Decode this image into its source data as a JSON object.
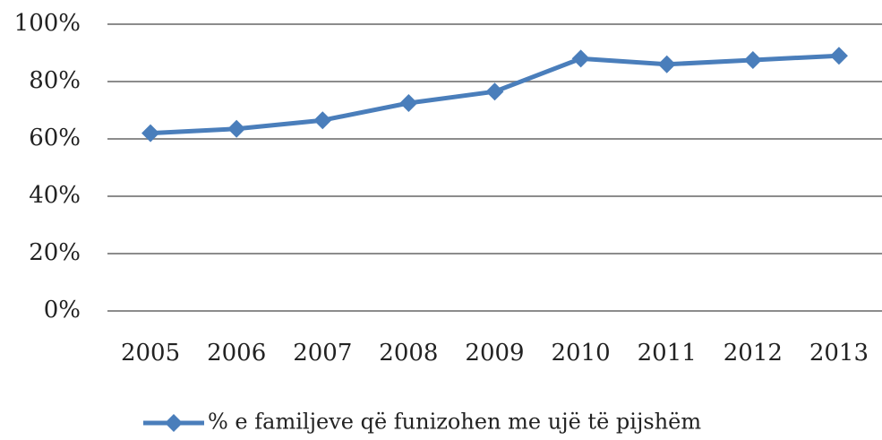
{
  "chart_data": {
    "type": "line",
    "categories": [
      "2005",
      "2006",
      "2007",
      "2008",
      "2009",
      "2010",
      "2011",
      "2012",
      "2013"
    ],
    "series": [
      {
        "name": "% e familjeve që funizohen me ujë të pijshëm",
        "color": "#4a7ebb",
        "values": [
          62,
          63.5,
          66.5,
          72.5,
          76.5,
          88,
          86,
          87.5,
          89
        ]
      }
    ],
    "ylim": [
      0,
      100
    ],
    "yticks": [
      {
        "value": 0,
        "label": "0%"
      },
      {
        "value": 20,
        "label": "20%"
      },
      {
        "value": 40,
        "label": "40%"
      },
      {
        "value": 60,
        "label": "60%"
      },
      {
        "value": 80,
        "label": "80%"
      },
      {
        "value": 100,
        "label": "100%"
      }
    ],
    "grid": true,
    "legend": "bottom"
  }
}
